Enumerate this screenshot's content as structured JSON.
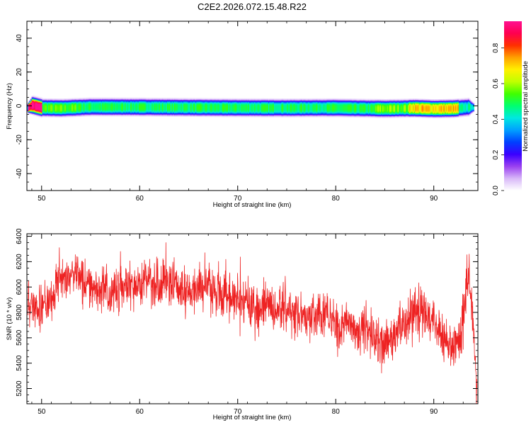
{
  "title": "C2E2.2026.072.15.48.R22",
  "chart_data": [
    {
      "type": "heatmap",
      "xlabel": "Height of straight line (km)",
      "ylabel": "Frequency (Hz)",
      "xlim": [
        48.5,
        94.5
      ],
      "ylim": [
        -50,
        50
      ],
      "xticks": [
        50,
        60,
        70,
        80,
        90
      ],
      "yticks": [
        -40,
        -20,
        0,
        20,
        40
      ],
      "band": {
        "x_start": 48.5,
        "x_end": 94.0,
        "center_frequency": [
          [
            48.6,
            -1
          ],
          [
            49.0,
            0.5
          ],
          [
            50.0,
            -1.0
          ],
          [
            52.0,
            -1.2
          ],
          [
            55.0,
            -0.5
          ],
          [
            60.0,
            -0.6
          ],
          [
            65.0,
            -0.8
          ],
          [
            70.0,
            -1.0
          ],
          [
            75.0,
            -1.1
          ],
          [
            80.0,
            -1.0
          ],
          [
            85.0,
            -1.5
          ],
          [
            88.0,
            -1.2
          ],
          [
            90.0,
            -1.6
          ],
          [
            92.0,
            -1.4
          ],
          [
            93.5,
            -0.6
          ],
          [
            94.0,
            -0.8
          ]
        ],
        "peak_amplitude_segments": [
          {
            "x": [
              48.6,
              50.0
            ],
            "level": 0.97
          },
          {
            "x": [
              50.0,
              54.0
            ],
            "level": 0.55
          },
          {
            "x": [
              54.0,
              84.0
            ],
            "level": 0.5
          },
          {
            "x": [
              84.0,
              87.5
            ],
            "level": 0.58
          },
          {
            "x": [
              87.5,
              92.5
            ],
            "level": 0.72
          },
          {
            "x": [
              92.5,
              94.0
            ],
            "level": 0.45
          }
        ]
      },
      "colorbar": {
        "label": "Normalized spectral amplitude",
        "range": [
          0.0,
          0.95
        ],
        "ticks": [
          "0.0",
          "0.2",
          "0.4",
          "0.6",
          "0.8"
        ],
        "tick_values": [
          0.0,
          0.2,
          0.4,
          0.6,
          0.8
        ],
        "colormap": [
          "#ffffff",
          "#d8b8f8",
          "#9a40f0",
          "#3a00ff",
          "#0040ff",
          "#00a0ff",
          "#00e8e0",
          "#00ff70",
          "#40ff00",
          "#c0ff00",
          "#fff000",
          "#ffa000",
          "#ff3000",
          "#ff0050",
          "#ff1090"
        ]
      }
    },
    {
      "type": "line",
      "xlabel": "Height of straight line (km)",
      "ylabel": "SNR (10 * v/v)",
      "xlim": [
        48.5,
        94.5
      ],
      "ylim": [
        5080,
        6420
      ],
      "xticks": [
        50,
        60,
        70,
        80,
        90
      ],
      "yticks": [
        5200,
        5400,
        5600,
        5800,
        6000,
        6200,
        6400
      ],
      "color": "#ee2222",
      "trend": {
        "x": [
          48.6,
          50,
          51,
          52,
          53,
          54,
          55,
          56,
          57,
          58,
          59,
          60,
          61,
          62,
          63,
          64,
          65,
          66,
          67,
          68,
          69,
          70,
          71,
          72,
          73,
          74,
          75,
          76,
          77,
          78,
          79,
          80,
          81,
          82,
          83,
          84,
          85,
          86,
          87,
          88,
          89,
          90,
          91,
          92,
          92.8,
          93.2,
          93.6,
          94.0,
          94.4
        ],
        "y": [
          5870,
          5840,
          5900,
          6060,
          6100,
          6080,
          6000,
          5980,
          5940,
          5960,
          6000,
          6040,
          6060,
          6010,
          6050,
          5980,
          5960,
          6010,
          6000,
          5960,
          5920,
          5900,
          5850,
          5830,
          5860,
          5800,
          5820,
          5780,
          5760,
          5800,
          5780,
          5720,
          5700,
          5660,
          5650,
          5600,
          5560,
          5620,
          5720,
          5760,
          5800,
          5720,
          5620,
          5540,
          5600,
          5900,
          6180,
          5700,
          5200
        ]
      },
      "noise_amplitude": 120,
      "samples": 1800
    }
  ]
}
